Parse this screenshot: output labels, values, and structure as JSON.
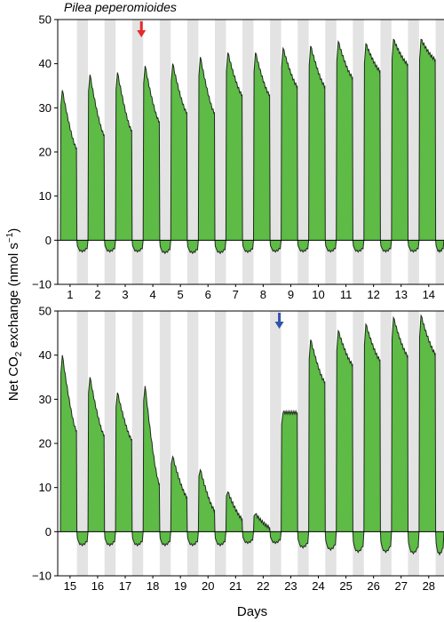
{
  "figure": {
    "title": "Pilea peperomioides",
    "ylabel_prefix": "Net CO",
    "ylabel_sub": "2",
    "ylabel_mid": " exchange (nmol s",
    "ylabel_sup": "−1",
    "ylabel_suffix": ")",
    "xlabel": "Days"
  },
  "chart_data": [
    {
      "type": "area",
      "title": "Pilea peperomioides",
      "xlabel": "",
      "ylabel": "Net CO2 exchange (nmol s−1)",
      "ylim": [
        -10,
        50
      ],
      "yticks": [
        -10,
        0,
        10,
        20,
        30,
        40,
        50
      ],
      "grid": false,
      "shading": "grey night periods",
      "days": [
        "1",
        "2",
        "3",
        "4",
        "5",
        "6",
        "7",
        "8",
        "9",
        "10",
        "11",
        "12",
        "13",
        "14"
      ],
      "day_peak": [
        34,
        37.5,
        38,
        39.5,
        40,
        41.5,
        42.5,
        42.5,
        43.5,
        44,
        45,
        44.5,
        45.5,
        45.5
      ],
      "day_end": [
        21,
        24,
        25,
        27,
        29,
        29,
        33,
        33,
        35,
        35,
        37,
        38.5,
        40,
        41
      ],
      "night_value": [
        -2.5,
        -2.5,
        -2.5,
        -2.8,
        -2.8,
        -2.8,
        -2.6,
        -2.5,
        -2.5,
        -2.5,
        -2.5,
        -2.5,
        -2.5,
        -2.5
      ],
      "annotations": [
        {
          "marker": "red-arrow",
          "day": "4"
        }
      ]
    },
    {
      "type": "area",
      "title": "",
      "xlabel": "Days",
      "ylabel": "Net CO2 exchange (nmol s−1)",
      "ylim": [
        -10,
        50
      ],
      "yticks": [
        -10,
        0,
        10,
        20,
        30,
        40,
        50
      ],
      "grid": false,
      "shading": "grey night periods",
      "days": [
        "15",
        "16",
        "17",
        "18",
        "19",
        "20",
        "21",
        "22",
        "23",
        "24",
        "25",
        "26",
        "27",
        "28"
      ],
      "day_peak": [
        40,
        35,
        31.5,
        33,
        17,
        14,
        9,
        4,
        27,
        43.5,
        45.5,
        47,
        48.5,
        49
      ],
      "day_end": [
        23,
        22,
        21,
        11,
        8,
        5,
        3,
        1,
        27,
        34,
        38,
        39,
        40,
        40.5
      ],
      "night_value": [
        -3,
        -3,
        -3,
        -3,
        -3,
        -3,
        -2.5,
        -2.5,
        -3.5,
        -4,
        -4.5,
        -4.5,
        -4.8,
        -5
      ],
      "annotations": [
        {
          "marker": "blue-arrow",
          "day": "23"
        }
      ]
    }
  ],
  "colors": {
    "fill": "#5dbb46",
    "trace": "#1f2a1c",
    "night": "#e3e3e3",
    "red_arrow": "#e8292b",
    "blue_arrow": "#3054a8"
  }
}
